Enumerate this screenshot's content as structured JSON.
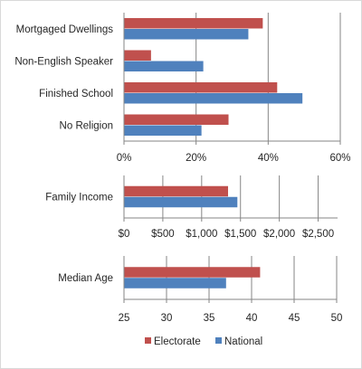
{
  "colors": {
    "electorate": "#c0504d",
    "national": "#4f81bd",
    "grid": "#868686",
    "axis": "#868686"
  },
  "legend": {
    "position": "bottom",
    "entries": [
      "Electorate",
      "National"
    ]
  },
  "chart_data": [
    {
      "type": "bar",
      "orientation": "horizontal",
      "categories": [
        "Mortgaged Dwellings",
        "Non-English Speaker",
        "Finished School",
        "No Religion"
      ],
      "series": [
        {
          "name": "Electorate",
          "values": [
            38.5,
            7.5,
            42.5,
            29
          ]
        },
        {
          "name": "National",
          "values": [
            34.5,
            22,
            49.5,
            21.5
          ]
        }
      ],
      "xlim": [
        0,
        60
      ],
      "ticks": [
        0,
        20,
        40,
        60
      ],
      "tick_labels": [
        "0%",
        "20%",
        "40%",
        "60%"
      ],
      "grid": true
    },
    {
      "type": "bar",
      "orientation": "horizontal",
      "categories": [
        "Family Income"
      ],
      "series": [
        {
          "name": "Electorate",
          "values": [
            1340
          ]
        },
        {
          "name": "National",
          "values": [
            1460
          ]
        }
      ],
      "xlim": [
        0,
        2750
      ],
      "ticks": [
        0,
        500,
        1000,
        1500,
        2000,
        2500
      ],
      "tick_labels": [
        "$0",
        "$500",
        "$1,000",
        "$1,500",
        "$2,000",
        "$2,500"
      ],
      "grid": true
    },
    {
      "type": "bar",
      "orientation": "horizontal",
      "categories": [
        "Median Age"
      ],
      "series": [
        {
          "name": "Electorate",
          "values": [
            41
          ]
        },
        {
          "name": "National",
          "values": [
            37
          ]
        }
      ],
      "xlim": [
        25,
        50
      ],
      "ticks": [
        25,
        30,
        35,
        40,
        45,
        50
      ],
      "tick_labels": [
        "25",
        "30",
        "35",
        "40",
        "45",
        "50"
      ],
      "grid": true
    }
  ]
}
